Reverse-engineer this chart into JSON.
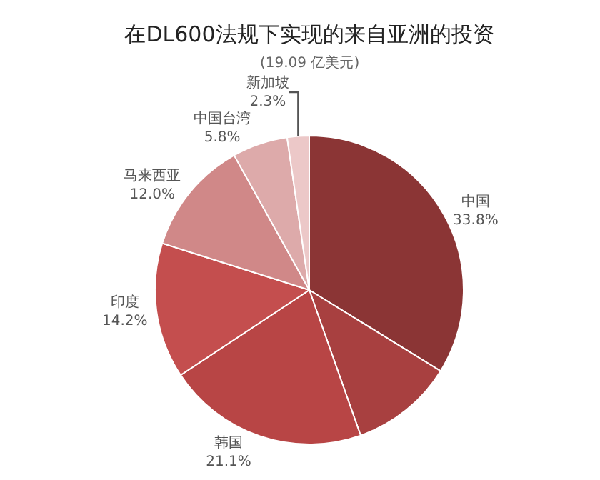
{
  "chart_data": {
    "type": "pie",
    "title": "在DL600法规下实现的来自亚洲的投资",
    "subtitle": "(19.09 亿美元)",
    "categories": [
      "中国",
      null,
      "韩国",
      "印度",
      "马来西亚",
      "中国台湾",
      "新加坡"
    ],
    "values": [
      33.8,
      10.8,
      21.1,
      14.2,
      12.0,
      5.8,
      2.3
    ],
    "value_labels": [
      "33.8%",
      null,
      "21.1%",
      "14.2%",
      "12.0%",
      "5.8%",
      "2.3%"
    ],
    "colors": [
      "#8b3535",
      "#a84040",
      "#b84545",
      "#c44e4e",
      "#d08888",
      "#ddaaaa",
      "#ecc8c8"
    ],
    "legend": false
  }
}
